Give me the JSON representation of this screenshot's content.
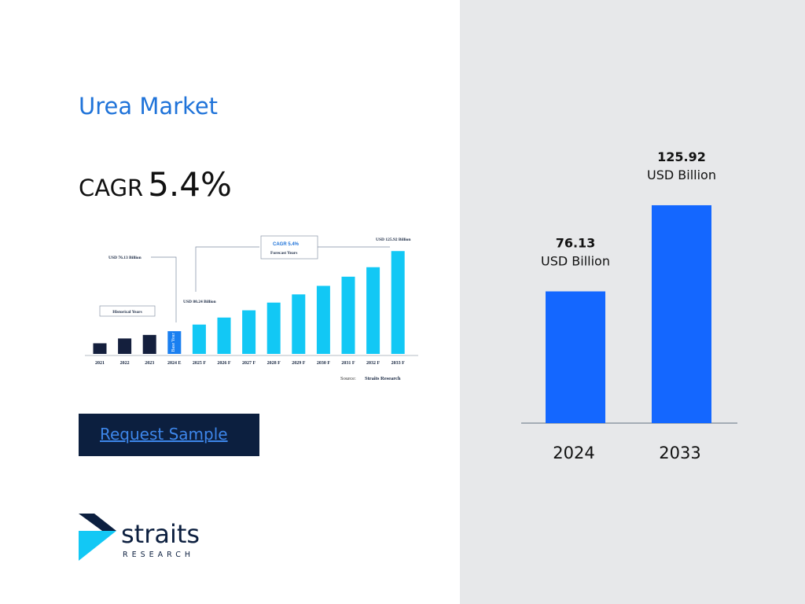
{
  "page": {
    "title": "Urea Market",
    "cagr_label": "CAGR",
    "cagr_value": "5.4%",
    "cta_label": "Request Sample",
    "logo_word": "straits",
    "logo_sub": "RESEARCH"
  },
  "colors": {
    "title": "#1f73d9",
    "bar_big": "#1467ff",
    "panel": "#e7e8ea",
    "cta_bg": "#0c1f3f",
    "cta_text": "#3d86ea",
    "hist_bar": "#141f3d",
    "base_bar": "#1a7ff0",
    "forecast_bar": "#12c8f5"
  },
  "chart_data": [
    {
      "type": "bar",
      "categories": [
        "2024",
        "2033"
      ],
      "values": [
        76.13,
        125.92
      ],
      "value_labels": [
        "76.13",
        "125.92"
      ],
      "unit_label": "USD Billion",
      "title": "",
      "xlabel": "",
      "ylabel": "",
      "ylim": [
        0,
        140
      ],
      "grid": false
    },
    {
      "type": "bar",
      "categories": [
        "2021",
        "2022",
        "2023",
        "2024 E",
        "2025 F",
        "2026 F",
        "2027 F",
        "2028 F",
        "2029 F",
        "2030 F",
        "2031 F",
        "2032 F",
        "2033 F"
      ],
      "values": [
        68.6,
        71.6,
        73.8,
        76.13,
        80.24,
        84.6,
        89.1,
        93.9,
        99.0,
        104.3,
        110.0,
        115.9,
        125.92
      ],
      "bar_groups": [
        "historical",
        "historical",
        "historical",
        "base",
        "forecast",
        "forecast",
        "forecast",
        "forecast",
        "forecast",
        "forecast",
        "forecast",
        "forecast",
        "forecast"
      ],
      "ylim": [
        62,
        128
      ],
      "annotations": {
        "start": "USD 76.13 Billion",
        "mid": "USD 80.24 Billion",
        "end": "USD 125.92 Billion",
        "historical": "Historical Years",
        "cagr": "CAGR 5.4%",
        "forecast": "Forecast Years",
        "base_year": "Base Year"
      },
      "source_label": "Source:",
      "source_name": "Straits Research"
    }
  ]
}
